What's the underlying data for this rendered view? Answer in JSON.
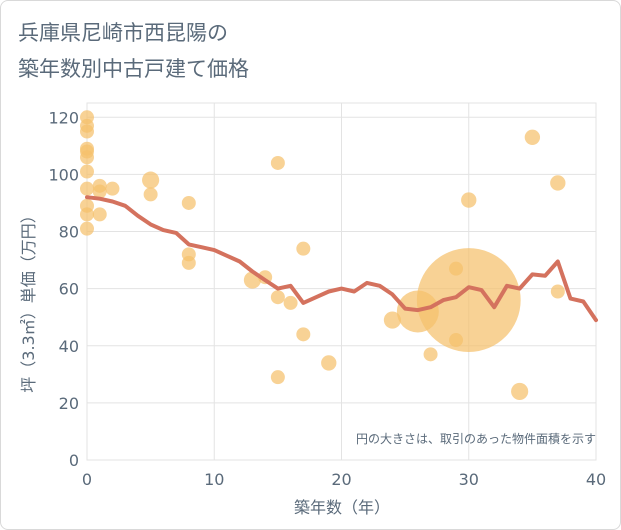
{
  "title_lines": [
    "兵庫県尼崎市西昆陽の",
    "築年数別中古戸建て価格"
  ],
  "chart_data": {
    "type": "scatter",
    "xlabel": "築年数（年）",
    "ylabel": "坪（3.3㎡）単価（万円）",
    "xlim": [
      0,
      40
    ],
    "ylim": [
      0,
      125
    ],
    "x_ticks": [
      0,
      10,
      20,
      30,
      40
    ],
    "y_ticks": [
      0,
      20,
      40,
      60,
      80,
      100,
      120
    ],
    "grid": true,
    "annotation": "円の大きさは、取引のあった物件面積を示す",
    "colors": {
      "points": "#f5c16c",
      "line": "#d4725e",
      "axis_text": "#5a6a7a",
      "grid": "#e3e3e3"
    },
    "points": [
      {
        "x": 0,
        "y": 120,
        "size": 1
      },
      {
        "x": 0,
        "y": 117,
        "size": 1
      },
      {
        "x": 0,
        "y": 115,
        "size": 1
      },
      {
        "x": 0,
        "y": 109,
        "size": 1
      },
      {
        "x": 0,
        "y": 108,
        "size": 1
      },
      {
        "x": 0,
        "y": 106,
        "size": 1
      },
      {
        "x": 0,
        "y": 101,
        "size": 1
      },
      {
        "x": 0,
        "y": 95,
        "size": 1
      },
      {
        "x": 0,
        "y": 89,
        "size": 1
      },
      {
        "x": 0,
        "y": 86,
        "size": 1
      },
      {
        "x": 0,
        "y": 81,
        "size": 1
      },
      {
        "x": 1,
        "y": 96,
        "size": 1
      },
      {
        "x": 1,
        "y": 94,
        "size": 1
      },
      {
        "x": 1,
        "y": 86,
        "size": 1
      },
      {
        "x": 2,
        "y": 95,
        "size": 1
      },
      {
        "x": 5,
        "y": 98,
        "size": 1.5
      },
      {
        "x": 5,
        "y": 93,
        "size": 1
      },
      {
        "x": 8,
        "y": 90,
        "size": 1
      },
      {
        "x": 8,
        "y": 72,
        "size": 1
      },
      {
        "x": 8,
        "y": 69,
        "size": 1
      },
      {
        "x": 13,
        "y": 63,
        "size": 1.5
      },
      {
        "x": 14,
        "y": 64,
        "size": 1
      },
      {
        "x": 15,
        "y": 104,
        "size": 1
      },
      {
        "x": 15,
        "y": 57,
        "size": 1
      },
      {
        "x": 15,
        "y": 29,
        "size": 1
      },
      {
        "x": 16,
        "y": 55,
        "size": 1
      },
      {
        "x": 17,
        "y": 74,
        "size": 1
      },
      {
        "x": 17,
        "y": 44,
        "size": 1
      },
      {
        "x": 19,
        "y": 34,
        "size": 1.2
      },
      {
        "x": 24,
        "y": 49,
        "size": 1.5
      },
      {
        "x": 26,
        "y": 52,
        "size": 9
      },
      {
        "x": 27,
        "y": 37,
        "size": 1
      },
      {
        "x": 29,
        "y": 67,
        "size": 1
      },
      {
        "x": 29,
        "y": 42,
        "size": 1
      },
      {
        "x": 30,
        "y": 56,
        "size": 55
      },
      {
        "x": 30,
        "y": 91,
        "size": 1.2
      },
      {
        "x": 34,
        "y": 24,
        "size": 1.5
      },
      {
        "x": 35,
        "y": 113,
        "size": 1.2
      },
      {
        "x": 37,
        "y": 97,
        "size": 1.2
      },
      {
        "x": 37,
        "y": 59,
        "size": 1
      }
    ],
    "trend": {
      "x": [
        0,
        1,
        2,
        3,
        4,
        5,
        6,
        7,
        8,
        9,
        10,
        11,
        12,
        13,
        14,
        15,
        16,
        17,
        18,
        19,
        20,
        21,
        22,
        23,
        24,
        25,
        26,
        27,
        28,
        29,
        30,
        31,
        32,
        33,
        34,
        35,
        36,
        37,
        38,
        39,
        40
      ],
      "y": [
        92,
        91.5,
        90.5,
        89,
        85.5,
        82.5,
        80.5,
        79.5,
        75.5,
        74.5,
        73.5,
        71.5,
        69.5,
        66,
        63,
        60,
        61,
        55,
        57,
        59,
        60,
        59,
        62,
        61,
        58,
        53,
        52.5,
        53.5,
        56,
        57,
        60.5,
        59.5,
        53.5,
        61,
        60,
        65,
        64.5,
        69.5,
        56.5,
        55.5,
        49
      ]
    }
  }
}
